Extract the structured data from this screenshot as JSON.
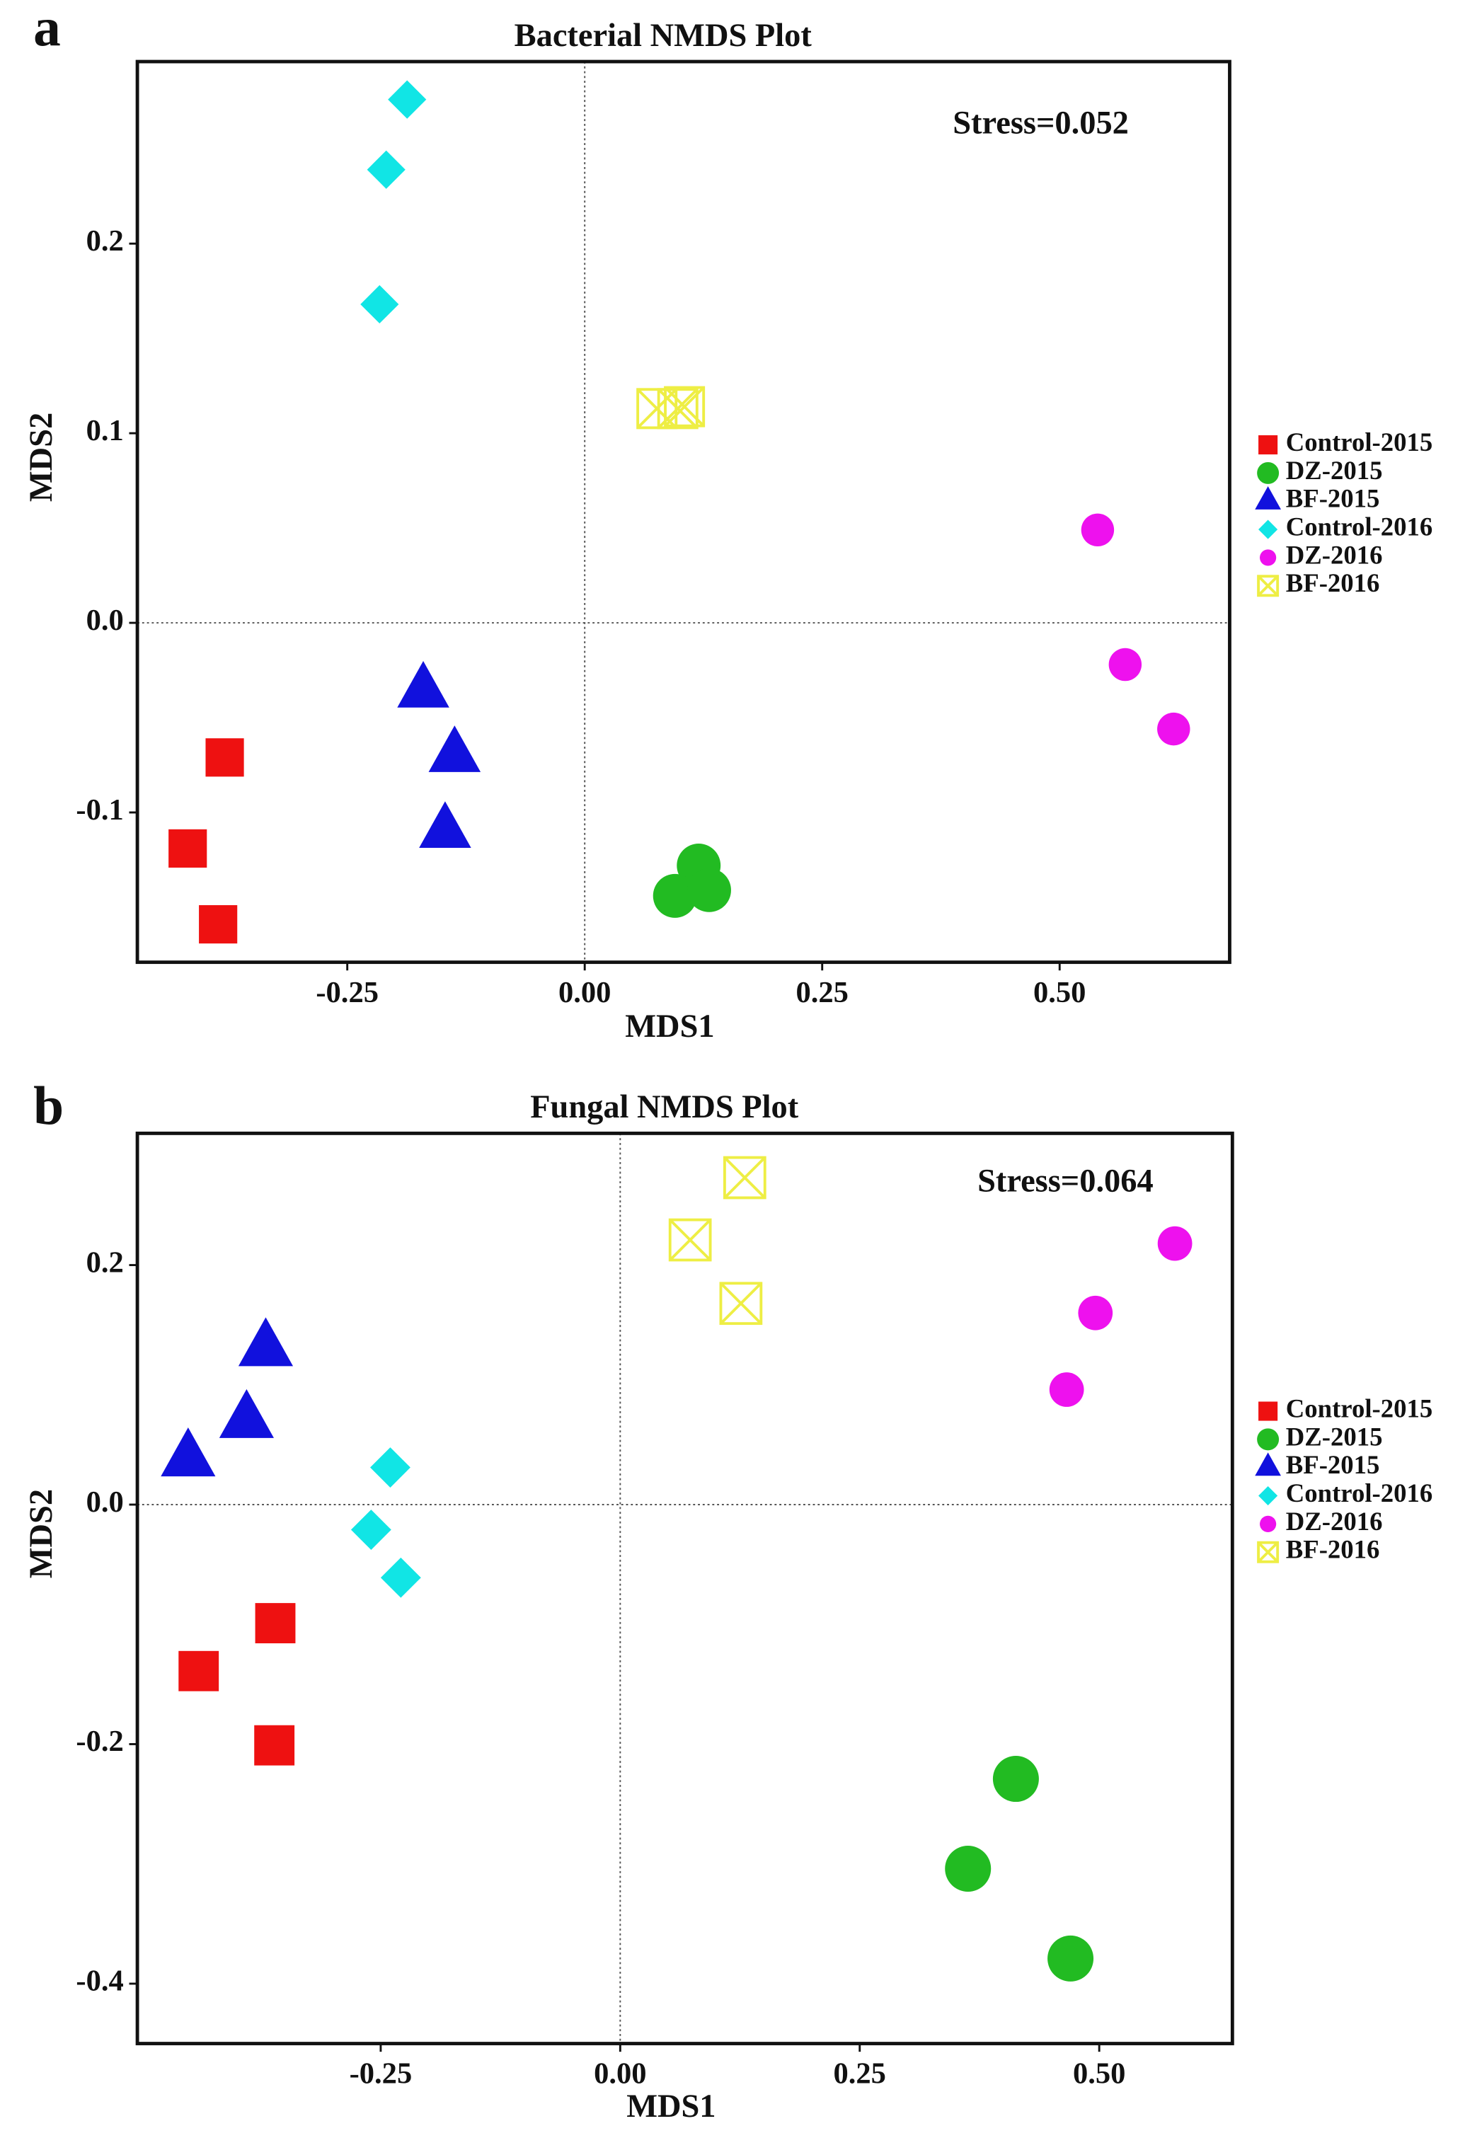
{
  "chart_data": [
    {
      "type": "scatter",
      "panel_label": "a",
      "title": "Bacterial NMDS Plot",
      "x_label": "MDS1",
      "y_label": "MDS2",
      "annotation": "Stress=0.052",
      "zero_lines": true,
      "legend": "right",
      "xlim": [
        -0.471,
        0.679
      ],
      "ylim": [
        -0.179,
        0.296
      ],
      "xticks": [
        -0.25,
        {
          "value": 0,
          "label": "0.00"
        },
        0.25,
        {
          "value": 0.5,
          "label": "0.50"
        }
      ],
      "yticks": [
        -0.1,
        {
          "value": 0,
          "label": "0.0"
        },
        0.1,
        0.2
      ],
      "series": [
        {
          "name": "Control-2015",
          "color": "#ee1111",
          "marker": "square",
          "x": [
            -0.379,
            -0.418,
            -0.386
          ],
          "values": [
            -0.071,
            -0.119,
            -0.159
          ]
        },
        {
          "name": "DZ-2015",
          "color": "#22bb22",
          "marker": "circle",
          "x": [
            0.12,
            0.095,
            0.131
          ],
          "values": [
            -0.128,
            -0.144,
            -0.141
          ]
        },
        {
          "name": "BF-2015",
          "color": "#1111dd",
          "marker": "triangle",
          "x": [
            -0.17,
            -0.137,
            -0.147
          ],
          "values": [
            -0.036,
            -0.07,
            -0.11
          ]
        },
        {
          "name": "Control-2016",
          "color": "#11e5e5",
          "marker": "diamond",
          "x": [
            -0.187,
            -0.209,
            -0.216
          ],
          "values": [
            0.276,
            0.239,
            0.168
          ]
        },
        {
          "name": "DZ-2016",
          "color": "#ee11ee",
          "marker": "dot",
          "x": [
            0.54,
            0.569,
            0.62
          ],
          "values": [
            0.049,
            -0.022,
            -0.056
          ]
        },
        {
          "name": "BF-2016",
          "color": "#eeee44",
          "marker": "crossbox",
          "x": [
            0.076,
            0.098,
            0.105
          ],
          "values": [
            0.113,
            0.113,
            0.114
          ]
        }
      ]
    },
    {
      "type": "scatter",
      "panel_label": "b",
      "title": "Fungal NMDS Plot",
      "x_label": "MDS1",
      "y_label": "MDS2",
      "annotation": "Stress=0.064",
      "zero_lines": true,
      "legend": "right",
      "xlim": [
        -0.504,
        0.639
      ],
      "ylim": [
        -0.45,
        0.31
      ],
      "xticks": [
        -0.25,
        {
          "value": 0,
          "label": "0.00"
        },
        0.25,
        {
          "value": 0.5,
          "label": "0.50"
        }
      ],
      "yticks": [
        -0.4,
        -0.2,
        {
          "value": 0,
          "label": "0.0"
        },
        0.2
      ],
      "series": [
        {
          "name": "Control-2015",
          "color": "#ee1111",
          "marker": "square",
          "x": [
            -0.36,
            -0.44,
            -0.361
          ],
          "values": [
            -0.099,
            -0.139,
            -0.201
          ]
        },
        {
          "name": "DZ-2015",
          "color": "#22bb22",
          "marker": "circle",
          "x": [
            0.413,
            0.363,
            0.47
          ],
          "values": [
            -0.229,
            -0.304,
            -0.379
          ]
        },
        {
          "name": "BF-2015",
          "color": "#1111dd",
          "marker": "triangle",
          "x": [
            -0.37,
            -0.39,
            -0.451
          ],
          "values": [
            0.13,
            0.07,
            0.038
          ]
        },
        {
          "name": "Control-2016",
          "color": "#11e5e5",
          "marker": "diamond",
          "x": [
            -0.24,
            -0.26,
            -0.229
          ],
          "values": [
            0.031,
            -0.021,
            -0.061
          ]
        },
        {
          "name": "DZ-2016",
          "color": "#ee11ee",
          "marker": "dot",
          "x": [
            0.579,
            0.496,
            0.466
          ],
          "values": [
            0.218,
            0.16,
            0.096
          ]
        },
        {
          "name": "BF-2016",
          "color": "#eeee44",
          "marker": "crossbox",
          "x": [
            0.13,
            0.073,
            0.126
          ],
          "values": [
            0.273,
            0.221,
            0.168
          ]
        }
      ]
    }
  ]
}
